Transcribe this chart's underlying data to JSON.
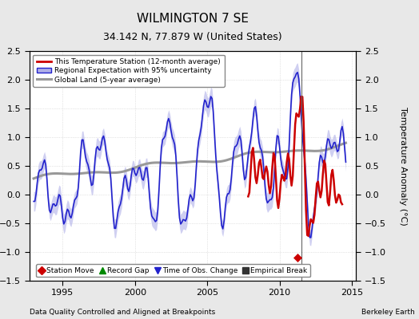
{
  "title": "WILMINGTON 7 SE",
  "subtitle": "34.142 N, 77.879 W (United States)",
  "ylabel": "Temperature Anomaly (°C)",
  "xlabel_left": "Data Quality Controlled and Aligned at Breakpoints",
  "xlabel_right": "Berkeley Earth",
  "xlim": [
    1992.7,
    2015.3
  ],
  "ylim": [
    -1.5,
    2.5
  ],
  "yticks": [
    -1.5,
    -1.0,
    -0.5,
    0.0,
    0.5,
    1.0,
    1.5,
    2.0,
    2.5
  ],
  "xticks": [
    1995,
    2000,
    2005,
    2010,
    2015
  ],
  "vertical_line_x": 2011.5,
  "station_move_x": 2011.25,
  "station_move_y": -1.1,
  "bg_color": "#e8e8e8",
  "plot_bg_color": "#ffffff",
  "grid_color": "#cccccc",
  "red_line_color": "#cc0000",
  "blue_line_color": "#2222cc",
  "blue_fill_color": "#b0b0e8",
  "gray_line_color": "#999999",
  "legend_items": [
    {
      "label": "This Temperature Station (12-month average)",
      "color": "#cc0000",
      "lw": 2.0
    },
    {
      "label": "Regional Expectation with 95% uncertainty",
      "color": "#2222cc",
      "lw": 1.5
    },
    {
      "label": "Global Land (5-year average)",
      "color": "#999999",
      "lw": 2.5
    }
  ],
  "bottom_legend": [
    {
      "label": "Station Move",
      "color": "#cc0000",
      "marker": "D"
    },
    {
      "label": "Record Gap",
      "color": "#008800",
      "marker": "^"
    },
    {
      "label": "Time of Obs. Change",
      "color": "#2222cc",
      "marker": "v"
    },
    {
      "label": "Empirical Break",
      "color": "#333333",
      "marker": "s"
    }
  ]
}
